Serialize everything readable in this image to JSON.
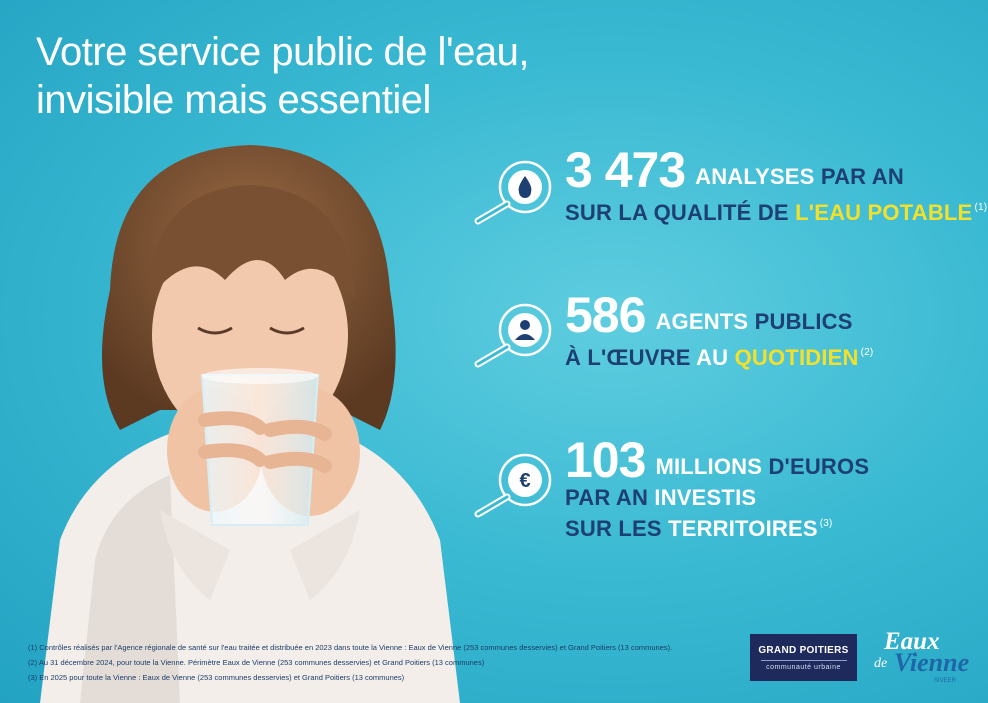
{
  "title": {
    "line1": "Votre service public de l'eau,",
    "line2": "invisible mais essentiel"
  },
  "stats": [
    {
      "icon": "water-drop-icon",
      "number": "3 473",
      "line1_white": "ANALYSES",
      "line1_blue": "PAR AN",
      "line2_blue": "SUR LA QUALITÉ DE",
      "line2_yellow": "L'EAU POTABLE",
      "note_ref": "(1)"
    },
    {
      "icon": "person-icon",
      "number": "586",
      "line1_white": "AGENTS",
      "line1_blue": "PUBLICS",
      "line2_blue": "À L'ŒUVRE",
      "line2_white": "AU",
      "line2_yellow": "QUOTIDIEN",
      "note_ref": "(2)"
    },
    {
      "icon": "euro-icon",
      "number": "103",
      "line1_white": "MILLIONS",
      "line1_blue": "D'EUROS",
      "line2_blue": "PAR AN",
      "line2_white": "INVESTIS",
      "line3_blue": "SUR LES",
      "line3_white": "TERRITOIRES",
      "note_ref": "(3)"
    }
  ],
  "footnotes": [
    "(1) Contrôles réalisés par l'Agence régionale de santé sur l'eau traitée et distribuée en 2023 dans toute la Vienne : Eaux de Vienne (253 communes desservies) et Grand Poitiers (13 communes).",
    "(2) Au 31 décembre 2024, pour toute la Vienne. Périmètre Eaux de Vienne (253 communes desservies) et Grand Poitiers (13 communes)",
    "(3) En 2025 pour toute la Vienne : Eaux de Vienne (253 communes desservies) et Grand Poitiers (13 communes)"
  ],
  "logos": {
    "grand_poitiers": {
      "line1": "GRAND POITIERS",
      "line2": "communauté urbaine"
    },
    "eaux_de_vienne": {
      "word1": "Eaux",
      "word2": "de",
      "word3": "Vienne",
      "word4": "SIVEER"
    }
  },
  "colors": {
    "background": "#3bbad3",
    "navy_text": "#1d3f72",
    "yellow_accent": "#f3e02b",
    "white": "#ffffff"
  }
}
